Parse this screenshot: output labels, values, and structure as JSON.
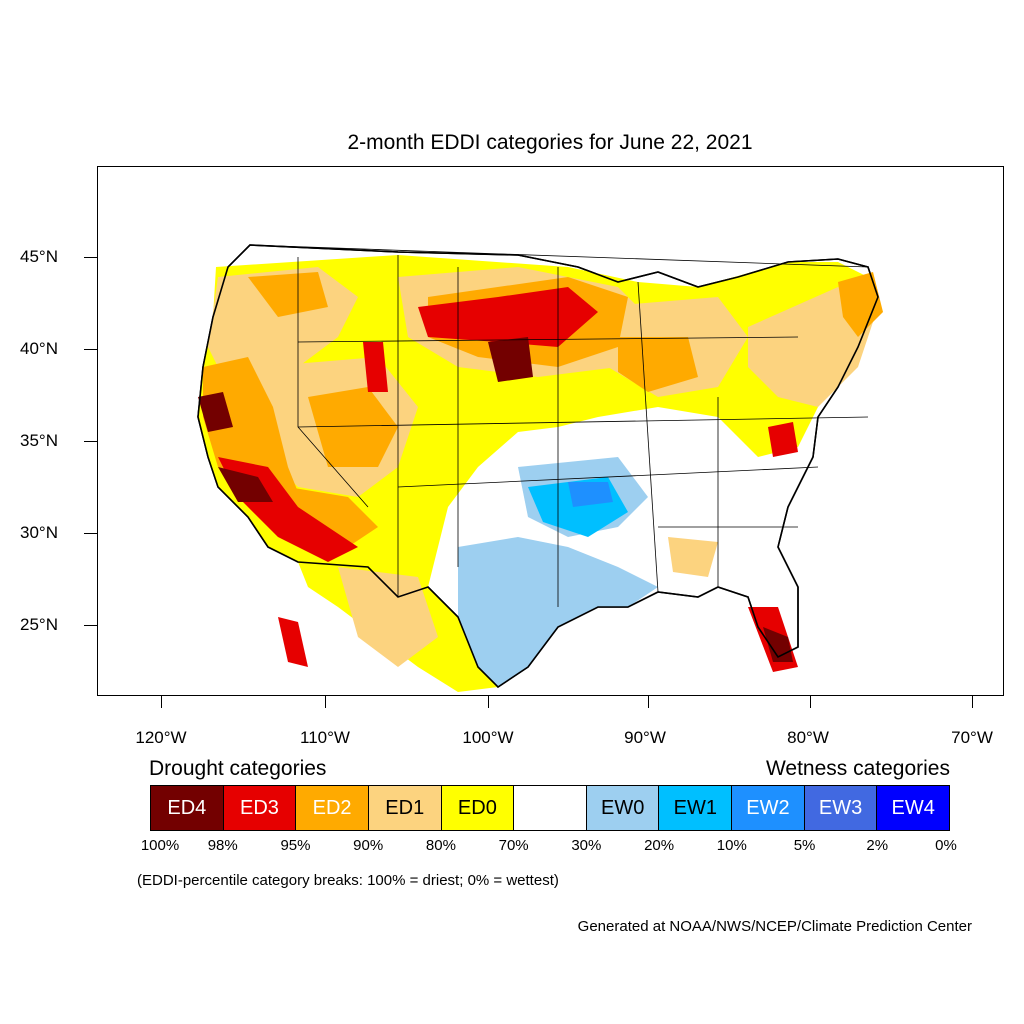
{
  "title": "2-month EDDI categories for June 22, 2021",
  "lat_labels": [
    "45°N",
    "40°N",
    "35°N",
    "30°N",
    "25°N"
  ],
  "lon_labels": [
    "120°W",
    "110°W",
    "100°W",
    "90°W",
    "80°W",
    "70°W"
  ],
  "legend": {
    "drought_heading": "Drought categories",
    "wetness_heading": "Wetness categories",
    "categories": [
      {
        "label": "ED4",
        "color": "#730000",
        "text_color": "#ffffff"
      },
      {
        "label": "ED3",
        "color": "#e60000",
        "text_color": "#ffffff"
      },
      {
        "label": "ED2",
        "color": "#ffaa00",
        "text_color": "#ffffff"
      },
      {
        "label": "ED1",
        "color": "#fcd37f",
        "text_color": "#000000"
      },
      {
        "label": "ED0",
        "color": "#ffff00",
        "text_color": "#000000"
      },
      {
        "label": "",
        "color": "#ffffff",
        "text_color": "#000000"
      },
      {
        "label": "EW0",
        "color": "#9dcff0",
        "text_color": "#000000"
      },
      {
        "label": "EW1",
        "color": "#00bfff",
        "text_color": "#000000"
      },
      {
        "label": "EW2",
        "color": "#1e90ff",
        "text_color": "#ffffff"
      },
      {
        "label": "EW3",
        "color": "#4169e1",
        "text_color": "#ffffff"
      },
      {
        "label": "EW4",
        "color": "#0000ff",
        "text_color": "#ffffff"
      }
    ],
    "breaks": [
      "100%",
      "98%",
      "95%",
      "90%",
      "80%",
      "70%",
      "30%",
      "20%",
      "10%",
      "5%",
      "2%",
      "0%"
    ]
  },
  "note": "(EDDI-percentile category breaks: 100% = driest; 0% = wettest)",
  "credit": "Generated at NOAA/NWS/NCEP/Climate Prediction Center"
}
